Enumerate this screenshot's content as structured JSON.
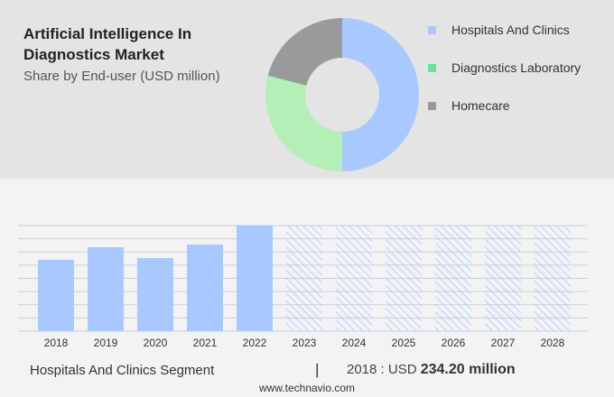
{
  "chart_data": [
    {
      "type": "pie",
      "title": "Artificial Intelligence In Diagnostics Market",
      "subtitle": "Share by End-user (USD million)",
      "donut": true,
      "legend_position": "right",
      "slices": [
        {
          "name": "Hospitals And Clinics",
          "value": 50,
          "color": "#a8c8ff"
        },
        {
          "name": "Diagnostics Laboratory",
          "value": 29,
          "color": "#b6eeb8"
        },
        {
          "name": "Homecare",
          "value": 21,
          "color": "#9a9a9a"
        }
      ],
      "legend_colors": [
        "#a8c8ff",
        "#6fe09a",
        "#9a9a9a"
      ]
    },
    {
      "type": "bar",
      "categories": [
        "2018",
        "2019",
        "2020",
        "2021",
        "2022",
        "2023",
        "2024",
        "2025",
        "2026",
        "2027",
        "2028"
      ],
      "values": [
        234.2,
        275.7,
        240.1,
        284.6,
        346.9,
        346.9,
        346.9,
        346.9,
        346.9,
        346.9,
        346.9
      ],
      "forecast_from": "2023",
      "ylim": [
        0,
        346.9
      ],
      "grid": true,
      "color": "#a8c8ff"
    }
  ],
  "footer": {
    "segment": "Hospitals And Clinics Segment",
    "separator": "|",
    "year_label": "2018 : USD",
    "value": "234.20 million",
    "url": "www.technavio.com"
  }
}
